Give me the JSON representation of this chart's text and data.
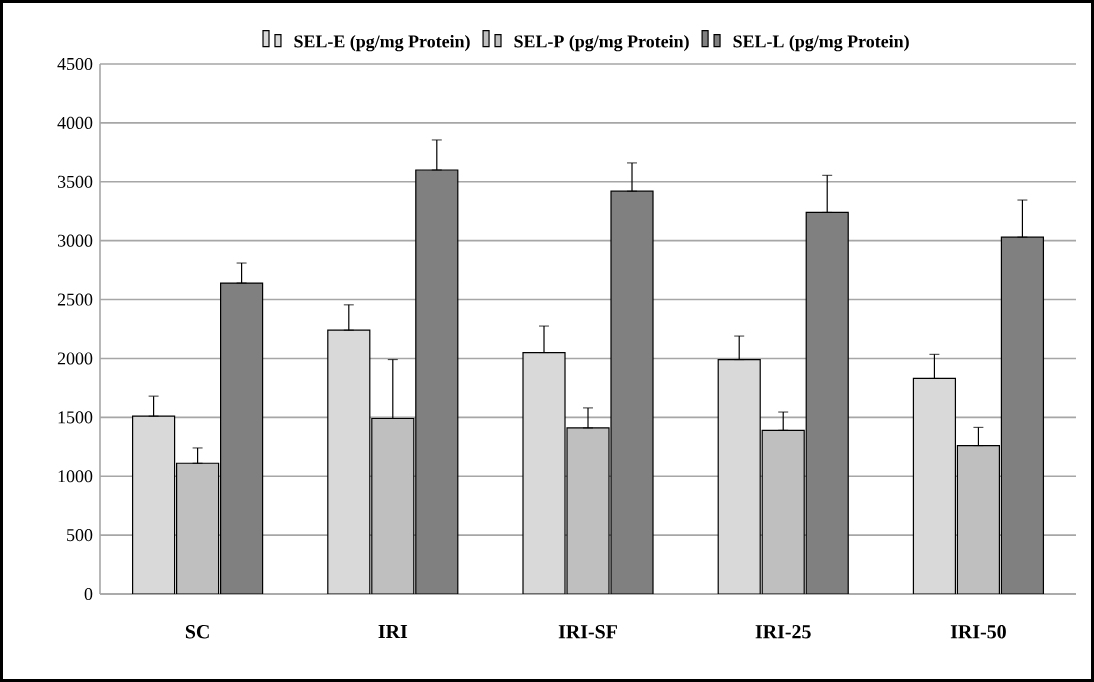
{
  "chart_data": {
    "type": "bar",
    "categories": [
      "SC",
      "IRI",
      "IRI-SF",
      "IRI-25",
      "IRI-50"
    ],
    "series": [
      {
        "name": "SEL-E (pg/mg Protein)",
        "color": "#d9d9d9",
        "values": [
          1510,
          2240,
          2050,
          1990,
          1830
        ],
        "errors": [
          [
            1510,
            1680
          ],
          [
            2240,
            2455
          ],
          [
            2050,
            2275
          ],
          [
            1990,
            2190
          ],
          [
            1830,
            2035
          ]
        ]
      },
      {
        "name": "SEL-P (pg/mg Protein)",
        "color": "#bfbfbf",
        "values": [
          1110,
          1490,
          1410,
          1390,
          1260
        ],
        "errors": [
          [
            1110,
            1240
          ],
          [
            1490,
            1990
          ],
          [
            1410,
            1580
          ],
          [
            1390,
            1545
          ],
          [
            1260,
            1415
          ]
        ]
      },
      {
        "name": "SEL-L (pg/mg Protein)",
        "color": "#808080",
        "values": [
          2640,
          3600,
          3420,
          3240,
          3030
        ],
        "errors": [
          [
            2640,
            2810
          ],
          [
            3600,
            3855
          ],
          [
            3420,
            3660
          ],
          [
            3240,
            3555
          ],
          [
            3030,
            3345
          ]
        ]
      }
    ],
    "ylim": [
      0,
      4500
    ],
    "yticks": [
      0,
      500,
      1000,
      1500,
      2000,
      2500,
      3000,
      3500,
      4000,
      4500
    ],
    "grid": "y",
    "legend": "top"
  }
}
